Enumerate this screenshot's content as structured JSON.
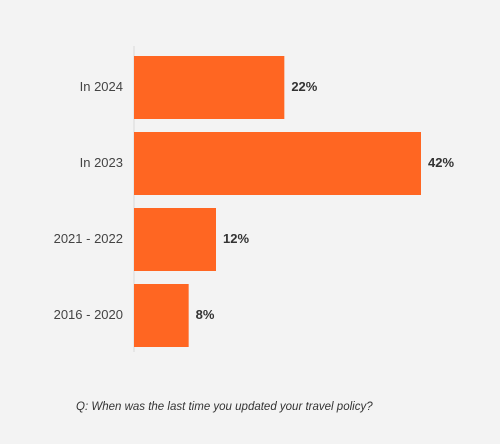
{
  "chart_data": {
    "type": "bar",
    "orientation": "horizontal",
    "categories": [
      "In 2024",
      "In 2023",
      "2021 - 2022",
      "2016 - 2020"
    ],
    "values": [
      22,
      42,
      12,
      8
    ],
    "data_labels": [
      "22%",
      "42%",
      "12%",
      "8%"
    ],
    "unit": "%",
    "title": "",
    "xlabel": "",
    "ylabel": "",
    "xlim": [
      0,
      45
    ],
    "grid": false,
    "legend": "none",
    "bar_color": "#ff6622"
  },
  "caption": "Q: When was the last time you updated your travel policy?"
}
